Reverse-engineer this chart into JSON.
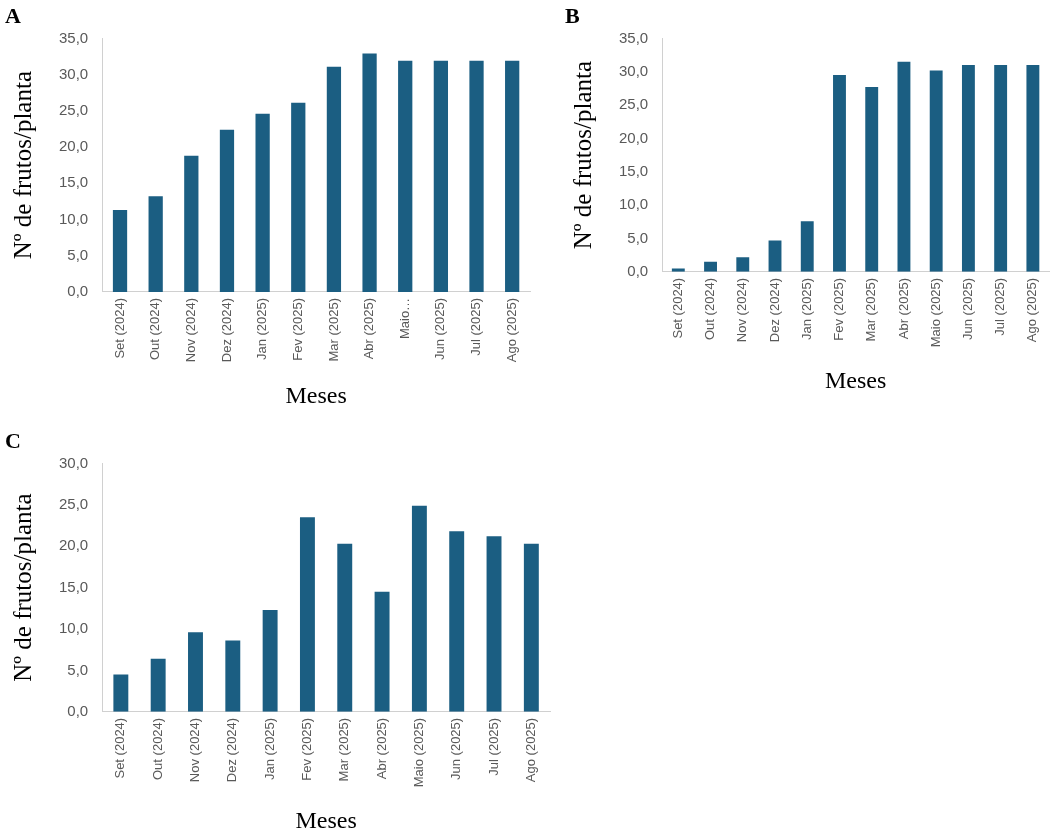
{
  "chart_data": [
    {
      "type": "bar",
      "title": "A",
      "xlabel": "Meses",
      "ylabel": "Nº de frutos/planta",
      "categories": [
        "Set (2024)",
        "Out (2024)",
        "Nov (2024)",
        "Dez (2024)",
        "Jan (2025)",
        "Fev (2025)",
        "Mar (2025)",
        "Abr (2025)",
        "Maio…",
        "Jun (2025)",
        "Jul (2025)",
        "Ago (2025)"
      ],
      "values": [
        11.3,
        13.2,
        18.8,
        22.4,
        24.6,
        26.1,
        31.1,
        32.9,
        31.9,
        31.9,
        31.9,
        31.9
      ],
      "color": "#1b5e82",
      "ylim": [
        0,
        35
      ],
      "yticks": [
        {
          "value": 0,
          "label": "0,0"
        },
        {
          "value": 5,
          "label": "5,0"
        },
        {
          "value": 10,
          "label": "10,0"
        },
        {
          "value": 15,
          "label": "15,0"
        },
        {
          "value": 20,
          "label": "20,0"
        },
        {
          "value": 25,
          "label": "25,0"
        },
        {
          "value": 30,
          "label": "30,0"
        },
        {
          "value": 35,
          "label": "35,0"
        }
      ],
      "grid": false,
      "legend": false
    },
    {
      "type": "bar",
      "title": "B",
      "xlabel": "Meses",
      "ylabel": "Nº de frutos/planta",
      "categories": [
        "Set (2024)",
        "Out (2024)",
        "Nov (2024)",
        "Dez (2024)",
        "Jan (2025)",
        "Fev (2025)",
        "Mar (2025)",
        "Abr (2025)",
        "Maio (2025)",
        "Jun (2025)",
        "Jul (2025)",
        "Ago (2025)"
      ],
      "values": [
        0.5,
        1.5,
        2.2,
        4.7,
        7.6,
        29.5,
        27.7,
        31.5,
        30.2,
        31.0,
        31.0,
        31.0
      ],
      "color": "#1b5e82",
      "ylim": [
        0,
        35
      ],
      "yticks": [
        {
          "value": 0,
          "label": "0,0"
        },
        {
          "value": 5,
          "label": "5,0"
        },
        {
          "value": 10,
          "label": "10,0"
        },
        {
          "value": 15,
          "label": "15,0"
        },
        {
          "value": 20,
          "label": "20,0"
        },
        {
          "value": 25,
          "label": "25,0"
        },
        {
          "value": 30,
          "label": "30,0"
        },
        {
          "value": 35,
          "label": "35,0"
        }
      ],
      "grid": false,
      "legend": false
    },
    {
      "type": "bar",
      "title": "C",
      "xlabel": "Meses",
      "ylabel": "Nº de frutos/planta",
      "categories": [
        "Set (2024)",
        "Out (2024)",
        "Nov (2024)",
        "Dez (2024)",
        "Jan (2025)",
        "Fev (2025)",
        "Mar (2025)",
        "Abr (2025)",
        "Maio (2025)",
        "Jun (2025)",
        "Jul (2025)",
        "Ago (2025)"
      ],
      "values": [
        4.5,
        6.4,
        9.6,
        8.6,
        12.3,
        23.5,
        20.3,
        14.5,
        24.9,
        21.8,
        21.2,
        20.3
      ],
      "color": "#1b5e82",
      "ylim": [
        0,
        30
      ],
      "yticks": [
        {
          "value": 0,
          "label": "0,0"
        },
        {
          "value": 5,
          "label": "5,0"
        },
        {
          "value": 10,
          "label": "10,0"
        },
        {
          "value": 15,
          "label": "15,0"
        },
        {
          "value": 20,
          "label": "20,0"
        },
        {
          "value": 25,
          "label": "25,0"
        },
        {
          "value": 30,
          "label": "30,0"
        }
      ],
      "grid": false,
      "legend": false
    }
  ]
}
